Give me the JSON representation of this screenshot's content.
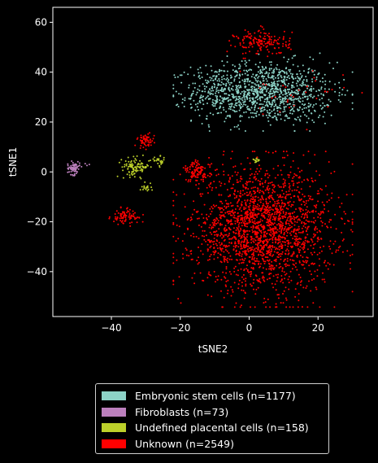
{
  "chart_data": {
    "type": "scatter",
    "xlabel": "tSNE2",
    "ylabel": "tSNE1",
    "xlim": [
      -57,
      36
    ],
    "ylim": [
      -58,
      66
    ],
    "xticks": [
      -40,
      -20,
      0,
      20
    ],
    "yticks": [
      -40,
      -20,
      0,
      20,
      40,
      60
    ],
    "grid": false,
    "legend_position": "below",
    "series": [
      {
        "name": "Embryonic stem cells (n=1177)",
        "color": "#8dd3c7",
        "n": 1177,
        "clusters": [
          {
            "cx": 4,
            "cy": 32,
            "sx": 10,
            "sy": 6,
            "n": 1070
          },
          {
            "cx": -10,
            "cy": 32,
            "sx": 4,
            "sy": 5,
            "n": 80
          },
          {
            "cx": 19,
            "cy": 26,
            "sx": 3,
            "sy": 3,
            "n": 27
          }
        ]
      },
      {
        "name": "Fibroblasts (n=73)",
        "color": "#bc80bd",
        "n": 73,
        "clusters": [
          {
            "cx": -51,
            "cy": 1.5,
            "sx": 0.9,
            "sy": 1.3,
            "n": 70
          },
          {
            "cx": -47,
            "cy": 3,
            "sx": 1,
            "sy": 0.5,
            "n": 3
          }
        ]
      },
      {
        "name": "Undefined placental cells (n=158)",
        "color": "#bcd02a",
        "n": 158,
        "clusters": [
          {
            "cx": -33,
            "cy": 2,
            "sx": 2,
            "sy": 1.8,
            "n": 100
          },
          {
            "cx": -30,
            "cy": -6,
            "sx": 0.8,
            "sy": 1,
            "n": 18
          },
          {
            "cx": -26,
            "cy": 4,
            "sx": 1.2,
            "sy": 1,
            "n": 25
          },
          {
            "cx": 2,
            "cy": 5,
            "sx": 0.6,
            "sy": 0.5,
            "n": 15
          }
        ]
      },
      {
        "name": "Unknown (n=2549)",
        "color": "#ff0000",
        "n": 2549,
        "clusters": [
          {
            "cx": 4,
            "cy": -23,
            "sx": 10,
            "sy": 12,
            "n": 2110
          },
          {
            "cx": 4,
            "cy": 52,
            "sx": 4,
            "sy": 2.5,
            "n": 160
          },
          {
            "cx": -15,
            "cy": 0,
            "sx": 2,
            "sy": 2,
            "n": 110
          },
          {
            "cx": -30,
            "cy": 12.5,
            "sx": 1.2,
            "sy": 1.5,
            "n": 55
          },
          {
            "cx": -36,
            "cy": -18,
            "sx": 2,
            "sy": 1.5,
            "n": 80
          },
          {
            "cx": 12,
            "cy": 30,
            "sx": 8,
            "sy": 5,
            "n": 34
          }
        ]
      }
    ]
  }
}
